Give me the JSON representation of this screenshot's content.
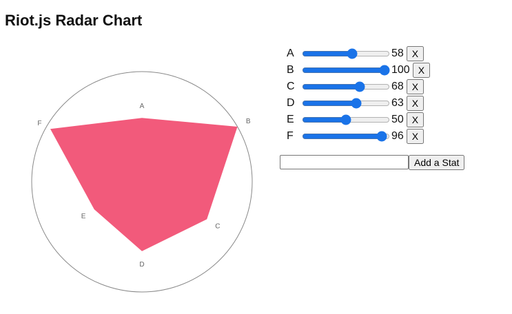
{
  "title": "Riot.js Radar Chart",
  "colors": {
    "fill": "#f25a7b",
    "circle": "#888888",
    "label": "#666666",
    "slider": "#1a73e8"
  },
  "chart_data": {
    "type": "radar",
    "categories": [
      "A",
      "B",
      "C",
      "D",
      "E",
      "F"
    ],
    "values": [
      58,
      100,
      68,
      63,
      50,
      96
    ],
    "range": [
      0,
      100
    ]
  },
  "stats": [
    {
      "label": "A",
      "value": "58",
      "remove": "X"
    },
    {
      "label": "B",
      "value": "100",
      "remove": "X"
    },
    {
      "label": "C",
      "value": "68",
      "remove": "X"
    },
    {
      "label": "D",
      "value": "63",
      "remove": "X"
    },
    {
      "label": "E",
      "value": "50",
      "remove": "X"
    },
    {
      "label": "F",
      "value": "96",
      "remove": "X"
    }
  ],
  "add": {
    "value": "",
    "button": "Add a Stat"
  }
}
